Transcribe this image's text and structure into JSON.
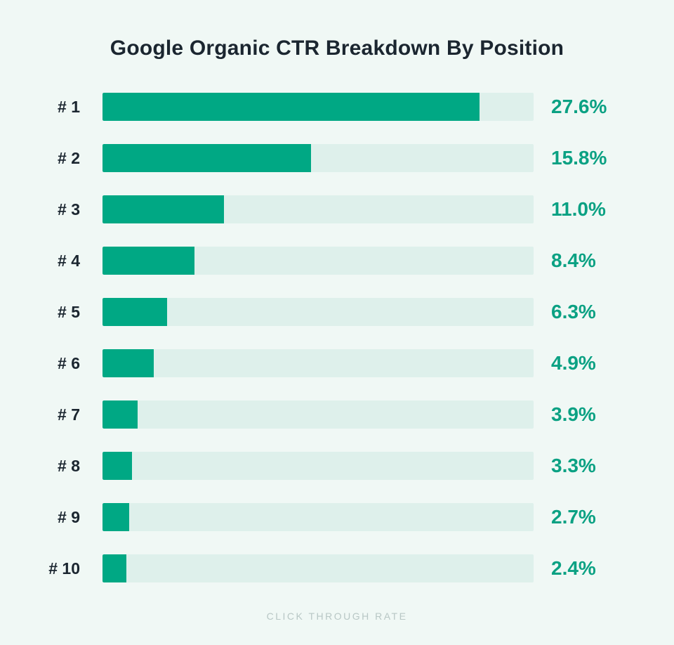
{
  "chart_data": {
    "type": "bar",
    "orientation": "horizontal",
    "title": "Google Organic CTR Breakdown By Position",
    "categories": [
      "# 1",
      "# 2",
      "# 3",
      "# 4",
      "# 5",
      "# 6",
      "# 7",
      "# 8",
      "# 9",
      "# 10"
    ],
    "values": [
      27.6,
      15.8,
      11.0,
      8.4,
      6.3,
      4.9,
      3.9,
      3.3,
      2.7,
      2.4
    ],
    "value_labels": [
      "27.6%",
      "15.8%",
      "11.0%",
      "8.4%",
      "6.3%",
      "4.9%",
      "3.9%",
      "3.3%",
      "2.7%",
      "2.4%"
    ],
    "xlabel": "CLICK THROUGH RATE",
    "ylabel": "",
    "legend": false,
    "grid": false,
    "value_label_position": "right-of-track",
    "bar_fill_percent_of_track": [
      87.5,
      48.4,
      28.2,
      21.3,
      15.0,
      11.9,
      8.1,
      6.8,
      6.2,
      5.5
    ],
    "colors": {
      "background": "#f0f8f5",
      "bar_fill": "#00a884",
      "bar_track": "#def0eb",
      "value_text": "#0ba183",
      "title_text": "#1b2630",
      "caption_text": "#b8c7c5"
    }
  }
}
